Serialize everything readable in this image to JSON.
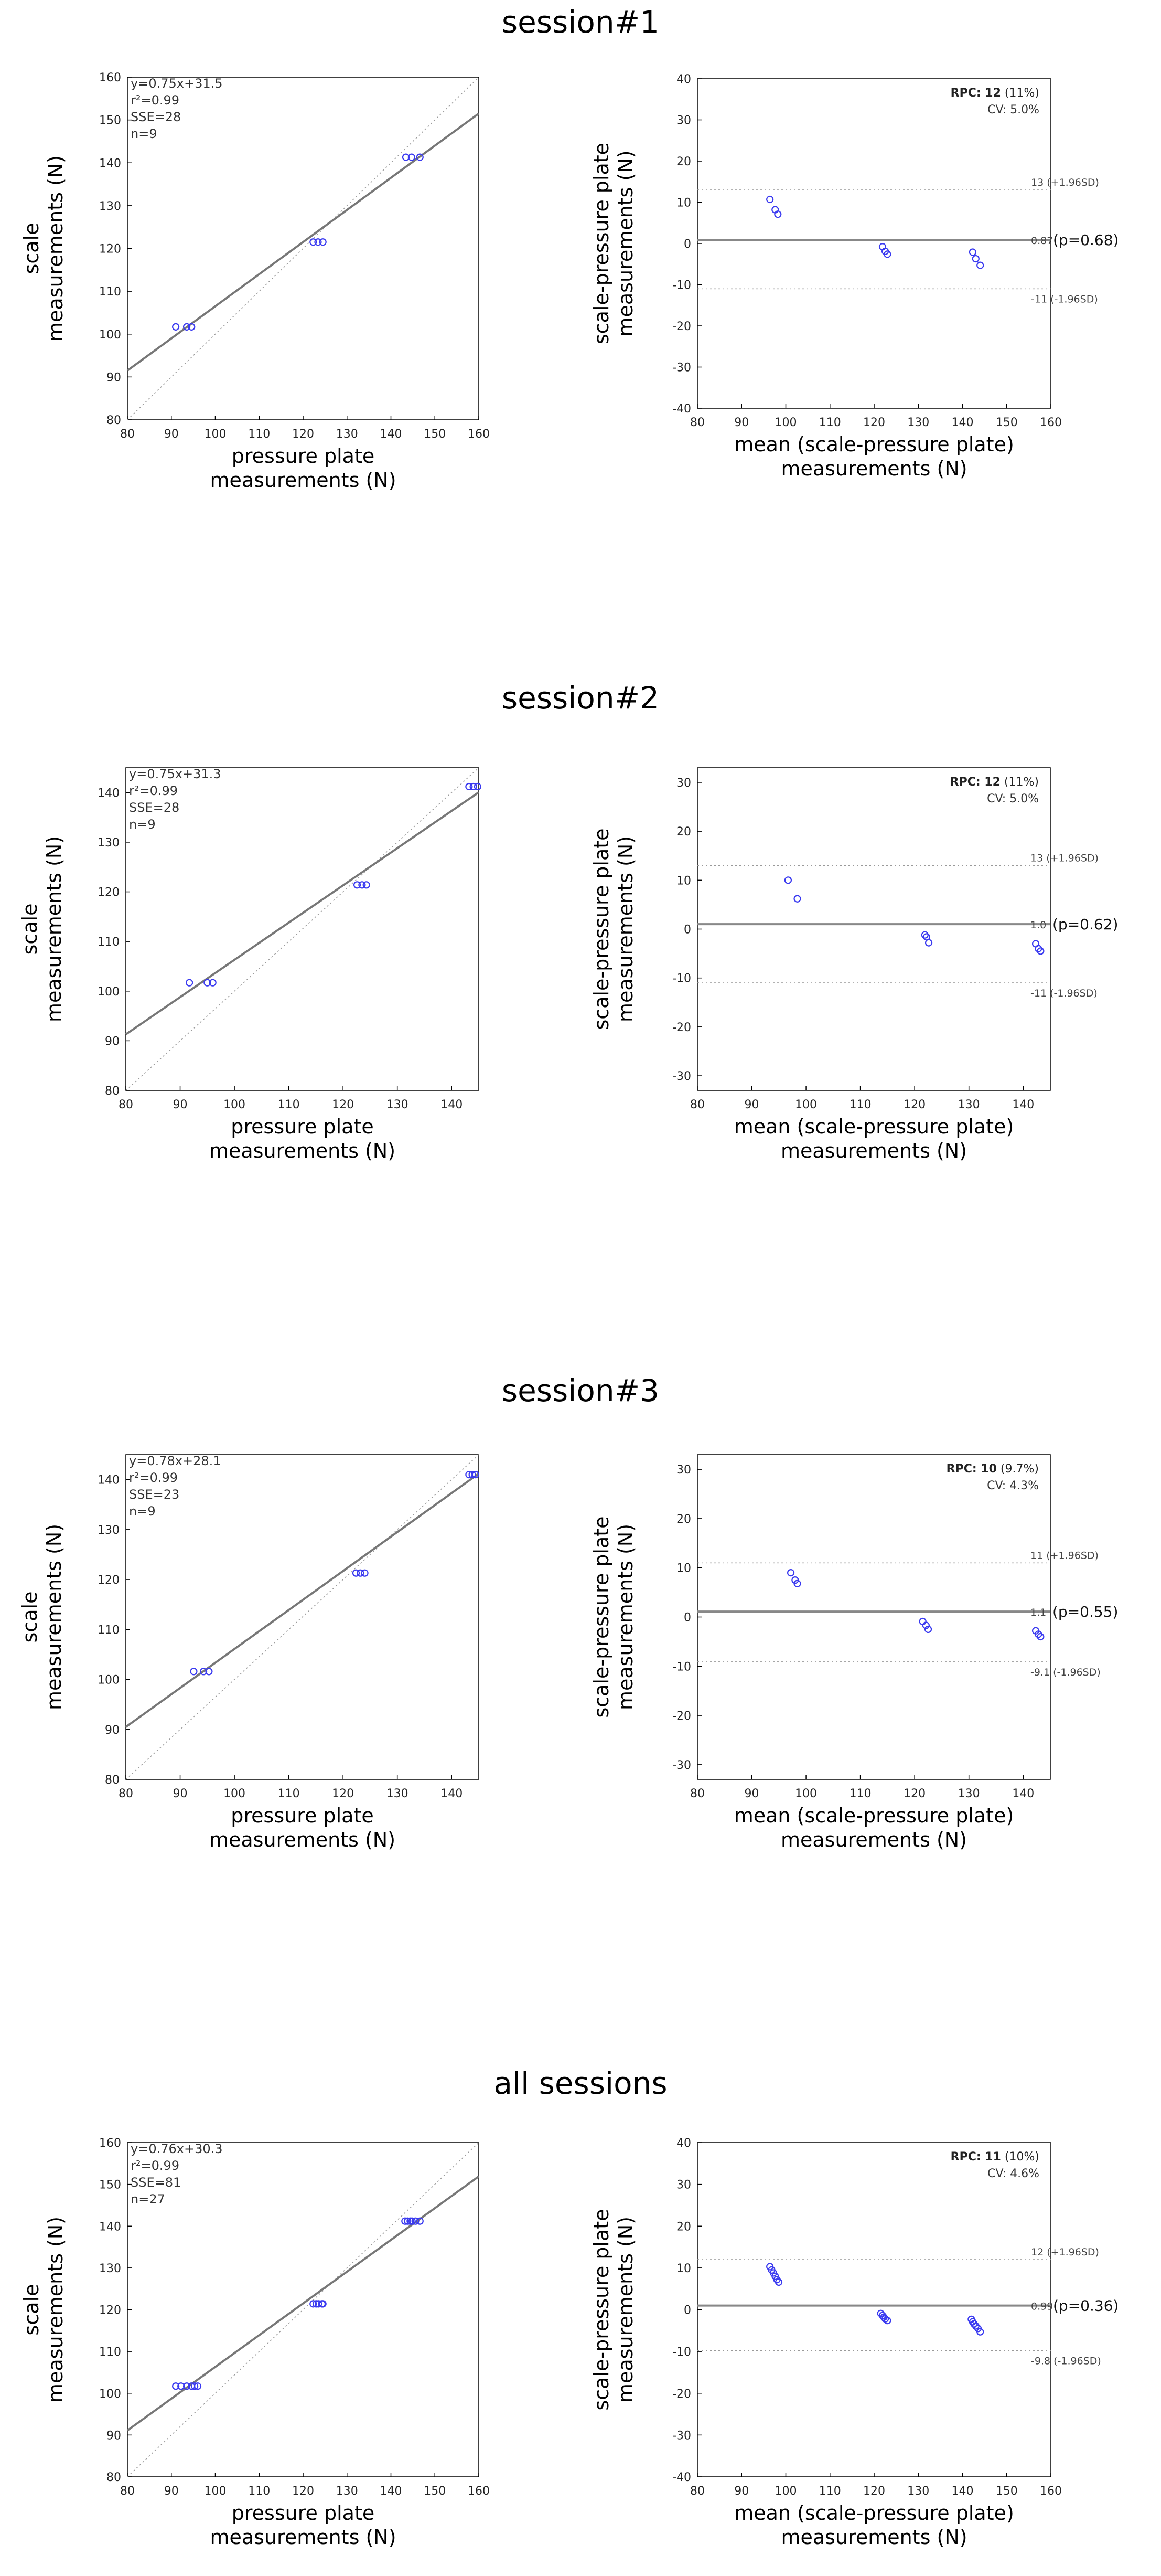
{
  "figure": {
    "sessions": [
      {
        "title": "session#1",
        "regression": {
          "type": "scatter",
          "xlabel": [
            "pressure plate",
            "measurements (N)"
          ],
          "ylabel": [
            "scale",
            "measurements (N)"
          ],
          "xlim": [
            80,
            160
          ],
          "ylim": [
            80,
            160
          ],
          "xticks": [
            80,
            90,
            100,
            110,
            120,
            130,
            140,
            150,
            160
          ],
          "yticks": [
            80,
            90,
            100,
            110,
            120,
            130,
            140,
            150,
            160
          ],
          "stats": [
            "y=0.75x+31.5",
            "r²=0.99",
            "SSE=28",
            "n=9"
          ],
          "fit": {
            "slope": 0.75,
            "intercept": 31.5
          },
          "identity_line": true,
          "points": [
            [
              91,
              101.7
            ],
            [
              93.5,
              101.7
            ],
            [
              94.6,
              101.7
            ],
            [
              122.3,
              121.5
            ],
            [
              123.4,
              121.5
            ],
            [
              124.5,
              121.5
            ],
            [
              143.4,
              141.3
            ],
            [
              144.7,
              141.3
            ],
            [
              146.6,
              141.3
            ]
          ]
        },
        "bland_altman": {
          "type": "scatter",
          "xlabel": [
            "mean (scale-pressure plate)",
            "measurements (N)"
          ],
          "ylabel": [
            "scale-pressure plate",
            "measurements (N)"
          ],
          "xlim": [
            80,
            160
          ],
          "ylim": [
            -40,
            40
          ],
          "xticks": [
            80,
            90,
            100,
            110,
            120,
            130,
            140,
            150,
            160
          ],
          "yticks": [
            -40,
            -30,
            -20,
            -10,
            0,
            10,
            20,
            30,
            40
          ],
          "rpc_label": "RPC:",
          "rpc_value": "12",
          "rpc_pct": "(11%)",
          "cv": "CV: 5.0%",
          "mean": 0.87,
          "mean_label": "0.87",
          "p_label": "(p=0.68)",
          "upper": 13,
          "upper_label": "13 (+1.96SD)",
          "lower": -11,
          "lower_label": "-11 (-1.96SD)",
          "points": [
            [
              96.4,
              10.7
            ],
            [
              97.6,
              8.2
            ],
            [
              98.2,
              7.1
            ],
            [
              121.9,
              -0.8
            ],
            [
              122.5,
              -1.9
            ],
            [
              123,
              -2.6
            ],
            [
              142.3,
              -2.1
            ],
            [
              143.0,
              -3.7
            ],
            [
              144.0,
              -5.3
            ]
          ]
        }
      },
      {
        "title": "session#2",
        "regression": {
          "type": "scatter",
          "xlabel": [
            "pressure plate",
            "measurements (N)"
          ],
          "ylabel": [
            "scale",
            "measurements (N)"
          ],
          "xlim": [
            80,
            145
          ],
          "ylim": [
            80,
            145
          ],
          "xticks": [
            80,
            90,
            100,
            110,
            120,
            130,
            140
          ],
          "yticks": [
            80,
            90,
            100,
            110,
            120,
            130,
            140
          ],
          "stats": [
            "y=0.75x+31.3",
            "r²=0.99",
            "SSE=28",
            "n=9"
          ],
          "fit": {
            "slope": 0.75,
            "intercept": 31.3
          },
          "identity_line": true,
          "points": [
            [
              91.7,
              101.7
            ],
            [
              95,
              101.7
            ],
            [
              96,
              101.7
            ],
            [
              122.6,
              121.4
            ],
            [
              123.5,
              121.4
            ],
            [
              124.3,
              121.4
            ],
            [
              143.2,
              141.2
            ],
            [
              144.0,
              141.2
            ],
            [
              144.8,
              141.2
            ]
          ]
        },
        "bland_altman": {
          "type": "scatter",
          "xlabel": [
            "mean (scale-pressure plate)",
            "measurements (N)"
          ],
          "ylabel": [
            "scale-pressure plate",
            "measurements (N)"
          ],
          "xlim": [
            80,
            145
          ],
          "ylim": [
            -33,
            33
          ],
          "xticks": [
            80,
            90,
            100,
            110,
            120,
            130,
            140
          ],
          "yticks": [
            -30,
            -20,
            -10,
            0,
            10,
            20,
            30
          ],
          "rpc_label": "RPC:",
          "rpc_value": "12",
          "rpc_pct": "(11%)",
          "cv": "CV: 5.0%",
          "mean": 1.0,
          "mean_label": "1.0",
          "p_label": "(p=0.62)",
          "upper": 13,
          "upper_label": "13 (+1.96SD)",
          "lower": -11,
          "lower_label": "-11 (-1.96SD)",
          "points": [
            [
              96.7,
              10
            ],
            [
              98.4,
              6.2
            ],
            [
              121.9,
              -1.2
            ],
            [
              122.2,
              -1.6
            ],
            [
              122.6,
              -2.8
            ],
            [
              142.3,
              -3.0
            ],
            [
              142.8,
              -4.0
            ],
            [
              143.2,
              -4.5
            ]
          ]
        }
      },
      {
        "title": "session#3",
        "regression": {
          "type": "scatter",
          "xlabel": [
            "pressure plate",
            "measurements (N)"
          ],
          "ylabel": [
            "scale",
            "measurements (N)"
          ],
          "xlim": [
            80,
            145
          ],
          "ylim": [
            80,
            145
          ],
          "xticks": [
            80,
            90,
            100,
            110,
            120,
            130,
            140
          ],
          "yticks": [
            80,
            90,
            100,
            110,
            120,
            130,
            140
          ],
          "stats": [
            "y=0.78x+28.1",
            "r²=0.99",
            "SSE=23",
            "n=9"
          ],
          "fit": {
            "slope": 0.78,
            "intercept": 28.1
          },
          "identity_line": true,
          "points": [
            [
              92.5,
              101.6
            ],
            [
              94.3,
              101.6
            ],
            [
              95.3,
              101.6
            ],
            [
              122.4,
              121.3
            ],
            [
              123.2,
              121.3
            ],
            [
              124,
              121.3
            ],
            [
              143.2,
              141.0
            ],
            [
              143.8,
              141.0
            ],
            [
              144.4,
              141.0
            ]
          ]
        },
        "bland_altman": {
          "type": "scatter",
          "xlabel": [
            "mean (scale-pressure plate)",
            "measurements (N)"
          ],
          "ylabel": [
            "scale-pressure plate",
            "measurements (N)"
          ],
          "xlim": [
            80,
            145
          ],
          "ylim": [
            -33,
            33
          ],
          "xticks": [
            80,
            90,
            100,
            110,
            120,
            130,
            140
          ],
          "yticks": [
            -30,
            -20,
            -10,
            0,
            10,
            20,
            30
          ],
          "rpc_label": "RPC:",
          "rpc_value": "10",
          "rpc_pct": "(9.7%)",
          "cv": "CV: 4.3%",
          "mean": 1.1,
          "mean_label": "1.1",
          "p_label": "(p=0.55)",
          "upper": 11,
          "upper_label": "11 (+1.96SD)",
          "lower": -9.1,
          "lower_label": "-9.1 (-1.96SD)",
          "points": [
            [
              97.2,
              9.0
            ],
            [
              98,
              7.5
            ],
            [
              98.4,
              6.8
            ],
            [
              121.5,
              -0.9
            ],
            [
              122.1,
              -1.7
            ],
            [
              122.5,
              -2.5
            ],
            [
              142.3,
              -2.8
            ],
            [
              142.8,
              -3.5
            ],
            [
              143.2,
              -4.0
            ]
          ]
        }
      },
      {
        "title": "all sessions",
        "regression": {
          "type": "scatter",
          "xlabel": [
            "pressure plate",
            "measurements (N)"
          ],
          "ylabel": [
            "scale",
            "measurements (N)"
          ],
          "xlim": [
            80,
            160
          ],
          "ylim": [
            80,
            160
          ],
          "xticks": [
            80,
            90,
            100,
            110,
            120,
            130,
            140,
            150,
            160
          ],
          "yticks": [
            80,
            90,
            100,
            110,
            120,
            130,
            140,
            150,
            160
          ],
          "stats": [
            "y=0.76x+30.3",
            "r²=0.99",
            "SSE=81",
            "n=27"
          ],
          "fit": {
            "slope": 0.76,
            "intercept": 30.3
          },
          "identity_line": true,
          "points": [
            [
              91,
              101.7
            ],
            [
              92.2,
              101.7
            ],
            [
              93.5,
              101.7
            ],
            [
              94.6,
              101.7
            ],
            [
              95.3,
              101.7
            ],
            [
              96,
              101.7
            ],
            [
              122.3,
              121.4
            ],
            [
              123,
              121.4
            ],
            [
              123.5,
              121.4
            ],
            [
              124.3,
              121.4
            ],
            [
              124.5,
              121.4
            ],
            [
              143.2,
              141.2
            ],
            [
              143.8,
              141.2
            ],
            [
              144.4,
              141.2
            ],
            [
              144.8,
              141.2
            ],
            [
              145.6,
              141.2
            ],
            [
              146.6,
              141.2
            ]
          ]
        },
        "bland_altman": {
          "type": "scatter",
          "xlabel": [
            "mean (scale-pressure plate)",
            "measurements (N)"
          ],
          "ylabel": [
            "scale-pressure plate",
            "measurements (N)"
          ],
          "xlim": [
            80,
            160
          ],
          "ylim": [
            -40,
            40
          ],
          "xticks": [
            80,
            90,
            100,
            110,
            120,
            130,
            140,
            150,
            160
          ],
          "yticks": [
            -40,
            -30,
            -20,
            -10,
            0,
            10,
            20,
            30,
            40
          ],
          "rpc_label": "RPC:",
          "rpc_value": "11",
          "rpc_pct": "(10%)",
          "cv": "CV: 4.6%",
          "mean": 0.99,
          "mean_label": "0.99",
          "p_label": "(p=0.36)",
          "upper": 12,
          "upper_label": "12 (+1.96SD)",
          "lower": -9.8,
          "lower_label": "-9.8 (-1.96SD)",
          "points": [
            [
              96.4,
              10.3
            ],
            [
              96.8,
              9.5
            ],
            [
              97.2,
              8.8
            ],
            [
              97.6,
              8.0
            ],
            [
              98.0,
              7.2
            ],
            [
              98.4,
              6.6
            ],
            [
              121.5,
              -0.9
            ],
            [
              121.9,
              -1.4
            ],
            [
              122.2,
              -1.8
            ],
            [
              122.5,
              -2.2
            ],
            [
              123.0,
              -2.6
            ],
            [
              142.0,
              -2.3
            ],
            [
              142.3,
              -2.9
            ],
            [
              142.6,
              -3.4
            ],
            [
              143.0,
              -3.9
            ],
            [
              143.5,
              -4.5
            ],
            [
              144.0,
              -5.3
            ]
          ]
        }
      }
    ]
  }
}
